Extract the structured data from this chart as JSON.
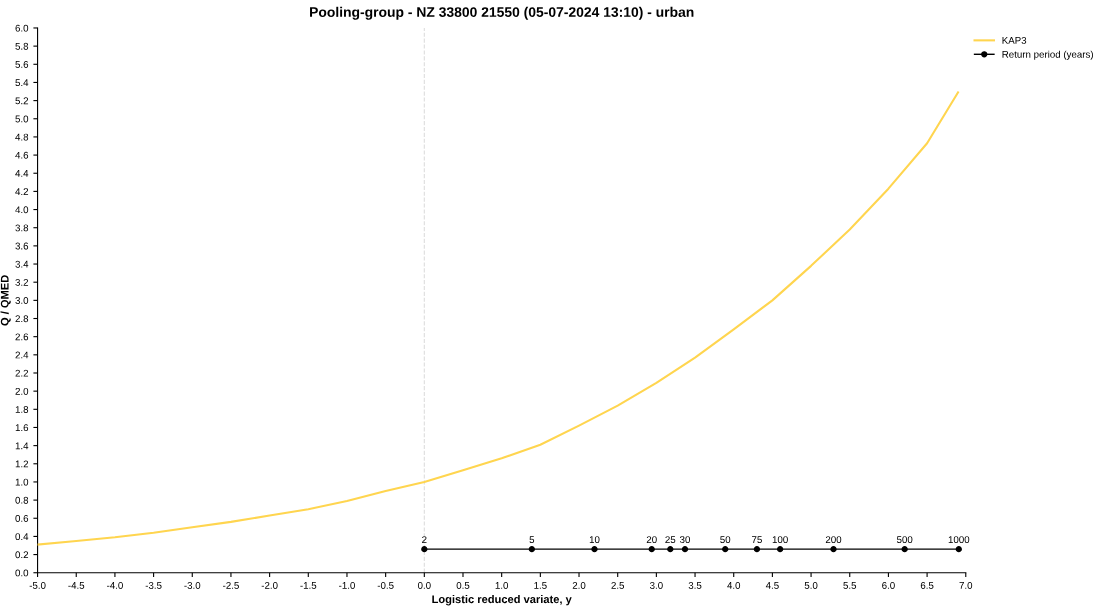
{
  "chart_data": {
    "type": "line",
    "title": "Pooling-group - NZ 33800 21550 (05-07-2024 13:10) - urban",
    "xlabel": "Logistic reduced variate, y",
    "ylabel": "Q / QMED",
    "series": [
      {
        "name": "KAP3",
        "color": "#ffd54f",
        "marker": "none",
        "x": [
          -5.0,
          -4.5,
          -4.0,
          -3.5,
          -3.0,
          -2.5,
          -2.0,
          -1.5,
          -1.0,
          -0.5,
          0.0,
          0.5,
          1.0,
          1.5,
          2.0,
          2.5,
          3.0,
          3.5,
          4.0,
          4.5,
          5.0,
          5.5,
          6.0,
          6.5,
          6.9
        ],
        "values": [
          0.31,
          0.35,
          0.39,
          0.44,
          0.5,
          0.56,
          0.63,
          0.7,
          0.79,
          0.9,
          1.0,
          1.13,
          1.26,
          1.41,
          1.62,
          1.84,
          2.09,
          2.37,
          2.68,
          3.0,
          3.38,
          3.78,
          4.23,
          4.73,
          5.29
        ]
      },
      {
        "name": "Return period (years)",
        "color": "#000000",
        "marker": "circle",
        "x": [
          0.0,
          1.39,
          2.2,
          2.94,
          3.18,
          3.37,
          3.89,
          4.3,
          4.6,
          5.29,
          6.21,
          6.91
        ],
        "values": [
          0.26,
          0.26,
          0.26,
          0.26,
          0.26,
          0.26,
          0.26,
          0.26,
          0.26,
          0.26,
          0.26,
          0.26
        ]
      }
    ],
    "annotations": [
      {
        "text": "2",
        "x": 0.0,
        "y": 0.26
      },
      {
        "text": "5",
        "x": 1.39,
        "y": 0.26
      },
      {
        "text": "10",
        "x": 2.2,
        "y": 0.26
      },
      {
        "text": "20",
        "x": 2.94,
        "y": 0.26
      },
      {
        "text": "25",
        "x": 3.18,
        "y": 0.26
      },
      {
        "text": "30",
        "x": 3.37,
        "y": 0.26
      },
      {
        "text": "50",
        "x": 3.89,
        "y": 0.26
      },
      {
        "text": "75",
        "x": 4.3,
        "y": 0.26
      },
      {
        "text": "100",
        "x": 4.6,
        "y": 0.26
      },
      {
        "text": "200",
        "x": 5.29,
        "y": 0.26
      },
      {
        "text": "500",
        "x": 6.21,
        "y": 0.26
      },
      {
        "text": "1000",
        "x": 6.91,
        "y": 0.26
      }
    ],
    "xlim": [
      -5.0,
      7.0
    ],
    "ylim": [
      0.0,
      6.0
    ],
    "xticks": [
      {
        "value": -5.0,
        "label": "-5.0"
      },
      {
        "value": -4.5,
        "label": "-4.5"
      },
      {
        "value": -4.0,
        "label": "-4.0"
      },
      {
        "value": -3.5,
        "label": "-3.5"
      },
      {
        "value": -3.0,
        "label": "-3.0"
      },
      {
        "value": -2.5,
        "label": "-2.5"
      },
      {
        "value": -2.0,
        "label": "-2.0"
      },
      {
        "value": -1.5,
        "label": "-1.5"
      },
      {
        "value": -1.0,
        "label": "-1.0"
      },
      {
        "value": -0.5,
        "label": "-0.5"
      },
      {
        "value": 0.0,
        "label": "0.0"
      },
      0.5,
      {
        "value": 1.0,
        "label": "1.0"
      },
      1.5,
      {
        "value": 2.0,
        "label": "2.0"
      },
      2.5,
      {
        "value": 3.0,
        "label": "3.0"
      },
      3.5,
      {
        "value": 4.0,
        "label": "4.0"
      },
      4.5,
      {
        "value": 5.0,
        "label": "5.0"
      },
      5.5,
      {
        "value": 6.0,
        "label": "6.0"
      },
      6.5,
      {
        "value": 7.0,
        "label": "7.0"
      }
    ],
    "yticks": [
      {
        "value": 0.0,
        "label": "0.0"
      },
      0.2,
      0.4,
      0.6,
      0.8,
      {
        "value": 1.0,
        "label": "1.0"
      },
      1.2,
      1.4,
      1.6,
      1.8,
      {
        "value": 2.0,
        "label": "2.0"
      },
      2.2,
      2.4,
      2.6,
      2.8,
      {
        "value": 3.0,
        "label": "3.0"
      },
      3.2,
      3.4,
      3.6,
      3.8,
      {
        "value": 4.0,
        "label": "4.0"
      },
      4.2,
      4.4,
      4.6,
      4.8,
      {
        "value": 5.0,
        "label": "5.0"
      },
      5.2,
      5.4,
      5.6,
      5.8,
      {
        "value": 6.0,
        "label": "6.0"
      }
    ],
    "ref_lines": [
      {
        "axis": "x",
        "value": 0.0,
        "color": "#dddddd",
        "line_style": "dashed"
      }
    ],
    "grid": false,
    "legend": "top right"
  }
}
